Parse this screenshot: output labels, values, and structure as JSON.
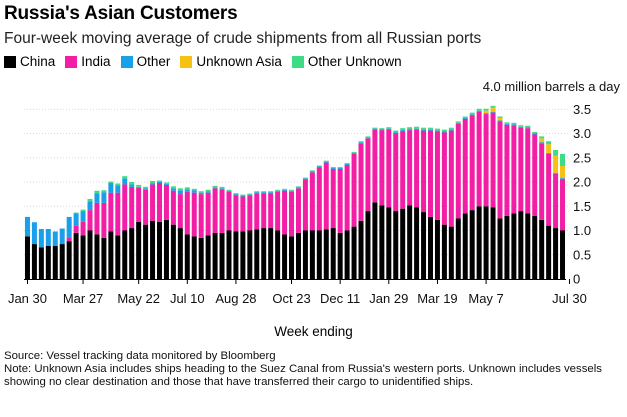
{
  "title": "Russia's Asian Customers",
  "subtitle": "Four-week moving average of crude shipments from all Russian ports",
  "legend": [
    {
      "label": "China",
      "color": "#000000"
    },
    {
      "label": "India",
      "color": "#f21ea6"
    },
    {
      "label": "Other",
      "color": "#1aa0ea"
    },
    {
      "label": "Unknown Asia",
      "color": "#f5c113"
    },
    {
      "label": "Other Unknown",
      "color": "#3ddc84"
    }
  ],
  "unit_label": "4.0 million barrels a day",
  "x_axis_title": "Week ending",
  "footer": {
    "source": "Source: Vessel tracking data monitored by Bloomberg",
    "note": "Note: Unknown Asia includes ships heading to the Suez Canal from Russia's western ports. Unknown includes vessels showing no clear destination and those that have transferred their cargo to unidentified ships."
  },
  "chart_data": {
    "type": "bar",
    "stacked": true,
    "title": "Russia's Asian Customers",
    "subtitle": "Four-week moving average of crude shipments from all Russian ports",
    "xlabel": "Week ending",
    "ylabel": "million barrels a day",
    "ylim": [
      0,
      4.0
    ],
    "yticks": [
      "0",
      "0.5",
      "1.0",
      "1.5",
      "2.0",
      "2.5",
      "3.0",
      "3.5",
      "4.0 million barrels a day"
    ],
    "ytick_values": [
      0,
      0.5,
      1.0,
      1.5,
      2.0,
      2.5,
      3.0,
      3.5,
      4.0
    ],
    "xtick_labels": [
      "Jan 30",
      "Mar 27",
      "May 22",
      "Jul 10",
      "Aug 28",
      "Oct 23",
      "Dec 11",
      "Jan 29",
      "Mar 19",
      "May 7",
      "Jul 30"
    ],
    "xtick_positions": [
      0,
      8,
      16,
      23,
      30,
      38,
      45,
      52,
      59,
      66,
      78
    ],
    "series": [
      {
        "name": "China",
        "color": "#000000",
        "values": [
          0.88,
          0.72,
          0.65,
          0.68,
          0.68,
          0.72,
          0.78,
          0.95,
          0.9,
          1.0,
          0.92,
          0.85,
          0.98,
          0.9,
          1.0,
          1.05,
          1.18,
          1.12,
          1.2,
          1.18,
          1.22,
          1.12,
          1.05,
          0.92,
          0.88,
          0.85,
          0.9,
          0.95,
          0.95,
          1.0,
          0.98,
          0.98,
          1.0,
          1.02,
          1.05,
          1.05,
          1.0,
          0.92,
          0.88,
          0.95,
          1.0,
          1.0,
          1.0,
          1.02,
          1.05,
          0.95,
          1.0,
          1.08,
          1.2,
          1.4,
          1.58,
          1.52,
          1.48,
          1.4,
          1.45,
          1.52,
          1.48,
          1.38,
          1.28,
          1.22,
          1.12,
          1.08,
          1.25,
          1.35,
          1.42,
          1.5,
          1.5,
          1.48,
          1.25,
          1.3,
          1.35,
          1.4,
          1.35,
          1.3,
          1.22,
          1.1,
          1.05,
          1.0
        ]
      },
      {
        "name": "India",
        "color": "#f21ea6",
        "values": [
          0.0,
          0.0,
          0.0,
          0.0,
          0.0,
          0.0,
          0.08,
          0.15,
          0.28,
          0.42,
          0.65,
          0.72,
          0.8,
          0.88,
          0.95,
          0.85,
          0.7,
          0.72,
          0.75,
          0.8,
          0.72,
          0.7,
          0.7,
          0.88,
          0.9,
          0.9,
          0.88,
          0.92,
          0.9,
          0.8,
          0.75,
          0.72,
          0.72,
          0.75,
          0.72,
          0.72,
          0.8,
          0.9,
          0.92,
          0.92,
          1.05,
          1.2,
          1.3,
          1.38,
          1.22,
          1.32,
          1.35,
          1.5,
          1.6,
          1.5,
          1.5,
          1.55,
          1.6,
          1.6,
          1.6,
          1.55,
          1.6,
          1.68,
          1.78,
          1.82,
          1.9,
          1.98,
          1.95,
          1.95,
          1.95,
          1.95,
          1.9,
          1.95,
          2.0,
          1.88,
          1.82,
          1.72,
          1.76,
          1.68,
          1.58,
          1.48,
          1.12,
          1.06
        ]
      },
      {
        "name": "Other",
        "color": "#1aa0ea",
        "values": [
          0.4,
          0.45,
          0.38,
          0.35,
          0.3,
          0.32,
          0.42,
          0.25,
          0.22,
          0.18,
          0.2,
          0.22,
          0.2,
          0.15,
          0.12,
          0.05,
          0.02,
          0.03,
          0.02,
          0.02,
          0.02,
          0.05,
          0.08,
          0.05,
          0.05,
          0.03,
          0.03,
          0.02,
          0.02,
          0.02,
          0.02,
          0.02,
          0.02,
          0.02,
          0.02,
          0.02,
          0.02,
          0.02,
          0.02,
          0.02,
          0.02,
          0.02,
          0.02,
          0.02,
          0.02,
          0.02,
          0.02,
          0.02,
          0.02,
          0.02,
          0.02,
          0.02,
          0.02,
          0.02,
          0.02,
          0.02,
          0.02,
          0.02,
          0.02,
          0.02,
          0.02,
          0.02,
          0.02,
          0.02,
          0.02,
          0.02,
          0.02,
          0.02,
          0.02,
          0.02,
          0.02,
          0.02,
          0.02,
          0.02,
          0.02,
          0.02,
          0.02,
          0.02
        ]
      },
      {
        "name": "Unknown Asia",
        "color": "#f5c113",
        "values": [
          0,
          0,
          0,
          0,
          0,
          0,
          0,
          0,
          0,
          0,
          0,
          0,
          0,
          0,
          0,
          0,
          0,
          0,
          0,
          0,
          0,
          0,
          0,
          0,
          0,
          0,
          0,
          0,
          0,
          0,
          0,
          0,
          0,
          0,
          0,
          0,
          0,
          0,
          0,
          0,
          0,
          0,
          0,
          0,
          0,
          0,
          0,
          0,
          0,
          0,
          0,
          0,
          0,
          0,
          0,
          0,
          0,
          0,
          0,
          0,
          0,
          0,
          0,
          0,
          0,
          0,
          0.05,
          0.08,
          0.05,
          0,
          0,
          0,
          0,
          0,
          0.08,
          0.18,
          0.35,
          0.25
        ]
      },
      {
        "name": "Other Unknown",
        "color": "#3ddc84",
        "values": [
          0,
          0,
          0,
          0,
          0,
          0,
          0,
          0.02,
          0.03,
          0.05,
          0.05,
          0.04,
          0.03,
          0.04,
          0.05,
          0.05,
          0.04,
          0.03,
          0.05,
          0.03,
          0.03,
          0.04,
          0.04,
          0.04,
          0.03,
          0.03,
          0.03,
          0.03,
          0.03,
          0.02,
          0.02,
          0.02,
          0.02,
          0.02,
          0.02,
          0.02,
          0.02,
          0.02,
          0.02,
          0.02,
          0.02,
          0.02,
          0.02,
          0.02,
          0.02,
          0.02,
          0.02,
          0.02,
          0.02,
          0.02,
          0.02,
          0.02,
          0.03,
          0.04,
          0.04,
          0.04,
          0.04,
          0.04,
          0.04,
          0.04,
          0.04,
          0.04,
          0.03,
          0.03,
          0.04,
          0.04,
          0.04,
          0.04,
          0.03,
          0.03,
          0.03,
          0.03,
          0.03,
          0.03,
          0.04,
          0.06,
          0.12,
          0.25
        ]
      }
    ]
  }
}
